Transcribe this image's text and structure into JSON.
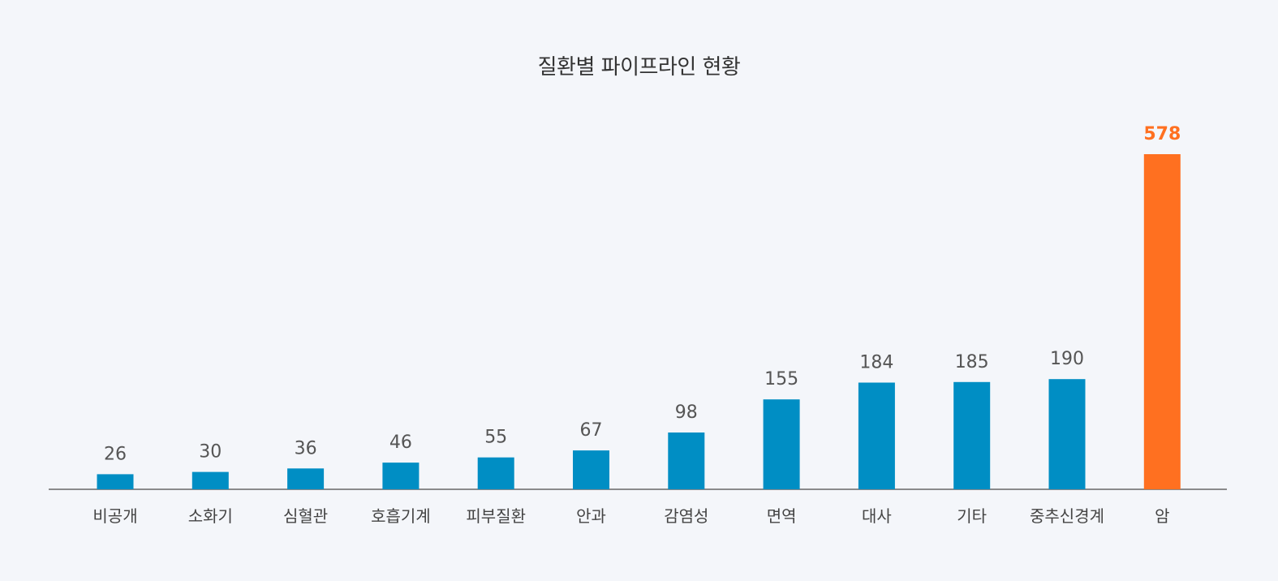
{
  "chart_data": {
    "type": "bar",
    "title": "질환별 파이프라인 현황",
    "xlabel": "",
    "ylabel": "",
    "categories": [
      "비공개",
      "소화기",
      "심혈관",
      "호흡기계",
      "피부질환",
      "안과",
      "감염성",
      "면역",
      "대사",
      "기타",
      "중추신경계",
      "암"
    ],
    "values": [
      26,
      30,
      36,
      46,
      55,
      67,
      98,
      155,
      184,
      185,
      190,
      578
    ],
    "highlight_index": 11,
    "grid": false,
    "legend": "none",
    "colors": {
      "bar": "#008ec4",
      "highlight": "#ff7020",
      "axis": "#666666"
    }
  }
}
